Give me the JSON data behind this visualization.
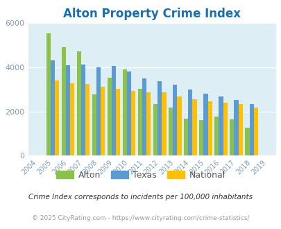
{
  "title": "Alton Property Crime Index",
  "years": [
    2004,
    2005,
    2006,
    2007,
    2008,
    2009,
    2010,
    2011,
    2012,
    2013,
    2014,
    2015,
    2016,
    2017,
    2018,
    2019
  ],
  "alton": [
    0,
    5520,
    4900,
    4730,
    2780,
    3520,
    3900,
    3030,
    2320,
    2180,
    1670,
    1600,
    1780,
    1650,
    1270,
    0
  ],
  "texas": [
    0,
    4320,
    4100,
    4120,
    4000,
    4050,
    3800,
    3500,
    3360,
    3200,
    3000,
    2800,
    2680,
    2520,
    2320,
    0
  ],
  "national": [
    0,
    3400,
    3280,
    3250,
    3130,
    3020,
    2920,
    2880,
    2860,
    2690,
    2560,
    2460,
    2390,
    2340,
    2180,
    0
  ],
  "alton_color": "#8bc34a",
  "texas_color": "#5b9bd5",
  "national_color": "#ffc000",
  "bg_color": "#ddeef5",
  "ylim": [
    0,
    6000
  ],
  "yticks": [
    0,
    2000,
    4000,
    6000
  ],
  "tick_color": "#7f9db9",
  "title_color": "#1a6fad",
  "footnote1": "Crime Index corresponds to incidents per 100,000 inhabitants",
  "footnote2": "© 2025 CityRating.com - https://www.cityrating.com/crime-statistics/",
  "legend_labels": [
    "Alton",
    "Texas",
    "National"
  ],
  "footnote1_color": "#333333",
  "footnote2_color": "#999999"
}
